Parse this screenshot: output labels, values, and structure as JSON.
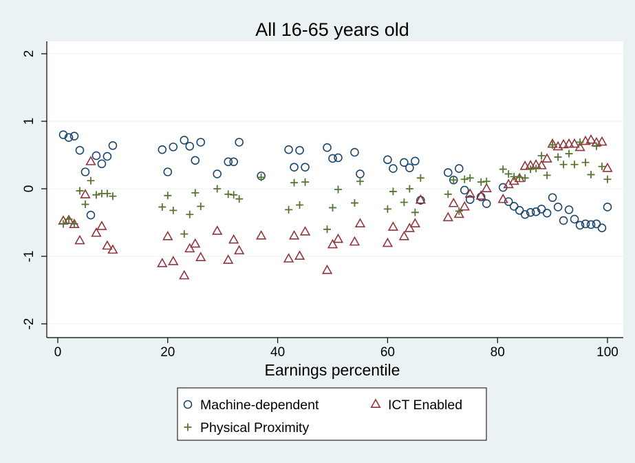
{
  "chart_data": {
    "type": "scatter",
    "title": "All 16-65 years old",
    "xlabel": "Earnings percentile",
    "ylabel": "",
    "xlim": [
      0,
      100
    ],
    "ylim": [
      -2,
      2
    ],
    "xticks": [
      0,
      20,
      40,
      60,
      80,
      100
    ],
    "yticks": [
      -2,
      -1,
      0,
      1,
      2
    ],
    "grid": "horizontal",
    "legend_position": "bottom",
    "series": [
      {
        "name": "Machine-dependent",
        "marker": "circle",
        "color": "#1a476f",
        "points": [
          [
            1,
            0.8
          ],
          [
            2,
            0.76
          ],
          [
            3,
            0.78
          ],
          [
            4,
            0.57
          ],
          [
            5,
            0.25
          ],
          [
            6,
            -0.39
          ],
          [
            7,
            0.49
          ],
          [
            8,
            0.37
          ],
          [
            9,
            0.48
          ],
          [
            10,
            0.64
          ],
          [
            19,
            0.58
          ],
          [
            20,
            0.25
          ],
          [
            21,
            0.62
          ],
          [
            23,
            0.72
          ],
          [
            24,
            0.63
          ],
          [
            25,
            0.42
          ],
          [
            26,
            0.69
          ],
          [
            29,
            0.22
          ],
          [
            31,
            0.4
          ],
          [
            32,
            0.4
          ],
          [
            33,
            0.69
          ],
          [
            37,
            0.19
          ],
          [
            42,
            0.58
          ],
          [
            43,
            0.32
          ],
          [
            44,
            0.57
          ],
          [
            45,
            0.32
          ],
          [
            49,
            0.61
          ],
          [
            50,
            0.45
          ],
          [
            51,
            0.46
          ],
          [
            54,
            0.54
          ],
          [
            55,
            0.22
          ],
          [
            60,
            0.43
          ],
          [
            61,
            0.3
          ],
          [
            63,
            0.39
          ],
          [
            64,
            0.31
          ],
          [
            65,
            0.41
          ],
          [
            66,
            -0.17
          ],
          [
            71,
            0.24
          ],
          [
            72,
            0.13
          ],
          [
            73,
            0.3
          ],
          [
            74,
            -0.02
          ],
          [
            75,
            -0.16
          ],
          [
            77,
            -0.12
          ],
          [
            78,
            -0.22
          ],
          [
            81,
            0.02
          ],
          [
            82,
            -0.19
          ],
          [
            83,
            -0.26
          ],
          [
            84,
            -0.32
          ],
          [
            85,
            -0.38
          ],
          [
            86,
            -0.35
          ],
          [
            87,
            -0.34
          ],
          [
            88,
            -0.3
          ],
          [
            89,
            -0.36
          ],
          [
            90,
            -0.13
          ],
          [
            91,
            -0.27
          ],
          [
            92,
            -0.47
          ],
          [
            93,
            -0.31
          ],
          [
            94,
            -0.45
          ],
          [
            95,
            -0.54
          ],
          [
            96,
            -0.52
          ],
          [
            97,
            -0.53
          ],
          [
            98,
            -0.52
          ],
          [
            99,
            -0.58
          ],
          [
            100,
            -0.27
          ]
        ]
      },
      {
        "name": "ICT Enabled",
        "marker": "triangle",
        "color": "#90353b",
        "points": [
          [
            1,
            -0.48
          ],
          [
            2,
            -0.47
          ],
          [
            3,
            -0.53
          ],
          [
            4,
            -0.77
          ],
          [
            5,
            -0.09
          ],
          [
            6,
            0.4
          ],
          [
            7,
            -0.66
          ],
          [
            8,
            -0.56
          ],
          [
            9,
            -0.85
          ],
          [
            10,
            -0.91
          ],
          [
            19,
            -1.11
          ],
          [
            20,
            -0.71
          ],
          [
            21,
            -1.08
          ],
          [
            23,
            -1.29
          ],
          [
            24,
            -0.89
          ],
          [
            25,
            -0.82
          ],
          [
            26,
            -1.02
          ],
          [
            29,
            -0.63
          ],
          [
            31,
            -1.06
          ],
          [
            32,
            -0.76
          ],
          [
            33,
            -0.92
          ],
          [
            37,
            -0.7
          ],
          [
            42,
            -1.04
          ],
          [
            43,
            -0.7
          ],
          [
            44,
            -1.0
          ],
          [
            45,
            -0.64
          ],
          [
            49,
            -1.21
          ],
          [
            50,
            -0.83
          ],
          [
            51,
            -0.75
          ],
          [
            54,
            -0.79
          ],
          [
            55,
            -0.52
          ],
          [
            60,
            -0.81
          ],
          [
            61,
            -0.57
          ],
          [
            63,
            -0.71
          ],
          [
            64,
            -0.59
          ],
          [
            65,
            -0.52
          ],
          [
            66,
            -0.17
          ],
          [
            71,
            -0.43
          ],
          [
            72,
            -0.22
          ],
          [
            73,
            -0.38
          ],
          [
            74,
            -0.27
          ],
          [
            75,
            -0.08
          ],
          [
            77,
            -0.11
          ],
          [
            78,
            0.0
          ],
          [
            81,
            -0.16
          ],
          [
            82,
            0.06
          ],
          [
            83,
            0.11
          ],
          [
            84,
            0.15
          ],
          [
            85,
            0.33
          ],
          [
            86,
            0.34
          ],
          [
            87,
            0.35
          ],
          [
            88,
            0.34
          ],
          [
            89,
            0.44
          ],
          [
            90,
            0.66
          ],
          [
            91,
            0.62
          ],
          [
            92,
            0.65
          ],
          [
            93,
            0.66
          ],
          [
            94,
            0.66
          ],
          [
            95,
            0.61
          ],
          [
            96,
            0.7
          ],
          [
            97,
            0.72
          ],
          [
            98,
            0.68
          ],
          [
            99,
            0.69
          ],
          [
            100,
            0.3
          ]
        ]
      },
      {
        "name": "Physical Proximity",
        "marker": "plus",
        "color": "#55752f",
        "points": [
          [
            1,
            -0.52
          ],
          [
            2,
            -0.45
          ],
          [
            3,
            -0.52
          ],
          [
            4,
            -0.03
          ],
          [
            5,
            -0.23
          ],
          [
            6,
            0.12
          ],
          [
            7,
            -0.09
          ],
          [
            8,
            -0.07
          ],
          [
            9,
            -0.07
          ],
          [
            10,
            -0.11
          ],
          [
            19,
            -0.27
          ],
          [
            20,
            -0.1
          ],
          [
            21,
            -0.32
          ],
          [
            23,
            -0.67
          ],
          [
            24,
            -0.38
          ],
          [
            25,
            -0.06
          ],
          [
            26,
            -0.26
          ],
          [
            29,
            0.0
          ],
          [
            31,
            -0.08
          ],
          [
            32,
            -0.09
          ],
          [
            33,
            -0.15
          ],
          [
            37,
            0.17
          ],
          [
            42,
            -0.31
          ],
          [
            43,
            0.09
          ],
          [
            44,
            -0.24
          ],
          [
            45,
            0.1
          ],
          [
            49,
            -0.6
          ],
          [
            50,
            -0.28
          ],
          [
            51,
            -0.01
          ],
          [
            54,
            -0.21
          ],
          [
            55,
            0.11
          ],
          [
            60,
            -0.3
          ],
          [
            61,
            -0.04
          ],
          [
            63,
            -0.2
          ],
          [
            64,
            0.0
          ],
          [
            65,
            -0.35
          ],
          [
            66,
            0.16
          ],
          [
            71,
            -0.08
          ],
          [
            72,
            0.13
          ],
          [
            73,
            -0.33
          ],
          [
            74,
            0.14
          ],
          [
            75,
            0.16
          ],
          [
            77,
            0.1
          ],
          [
            78,
            0.11
          ],
          [
            81,
            0.29
          ],
          [
            82,
            0.22
          ],
          [
            83,
            0.18
          ],
          [
            84,
            0.17
          ],
          [
            85,
            0.16
          ],
          [
            86,
            0.29
          ],
          [
            87,
            0.3
          ],
          [
            88,
            0.49
          ],
          [
            89,
            0.2
          ],
          [
            90,
            0.65
          ],
          [
            91,
            0.47
          ],
          [
            92,
            0.36
          ],
          [
            93,
            0.52
          ],
          [
            94,
            0.36
          ],
          [
            95,
            0.69
          ],
          [
            96,
            0.39
          ],
          [
            97,
            0.21
          ],
          [
            98,
            0.63
          ],
          [
            99,
            0.33
          ],
          [
            100,
            0.14
          ]
        ]
      }
    ]
  }
}
